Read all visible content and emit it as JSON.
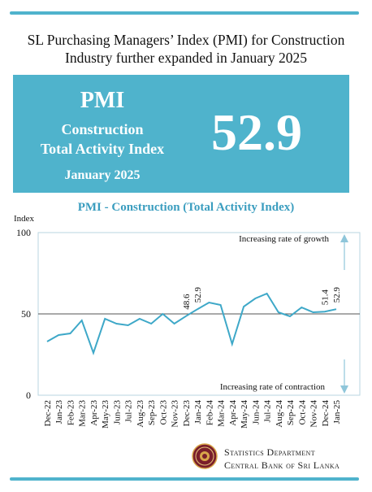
{
  "colors": {
    "accent": "#4fb3cc",
    "line": "#3ea8c8",
    "banner_bg": "#4fb3cc",
    "title_color": "#3a9dbf"
  },
  "headline": {
    "line1": "SL Purchasing Managers’ Index (PMI) for Construction",
    "line2": "Industry further expanded in January 2025"
  },
  "banner": {
    "pmi": "PMI",
    "subtitle1": "Construction",
    "subtitle2": "Total Activity Index",
    "date": "January 2025",
    "value": "52.9"
  },
  "chart_title": "PMI - Construction (Total Activity Index)",
  "chart_data": {
    "type": "line",
    "ylabel": "Index",
    "ylim": [
      0,
      100
    ],
    "yticks": [
      0,
      50,
      100
    ],
    "reference_line": 50,
    "categories": [
      "Dec-22",
      "Jan-23",
      "Feb-23",
      "Mar-23",
      "Apr-23",
      "May-23",
      "Jun-23",
      "Jul-23",
      "Aug-23",
      "Sep-23",
      "Oct-23",
      "Nov-23",
      "Dec-23",
      "Jan-24",
      "Feb-24",
      "Mar-24",
      "Apr-24",
      "May-24",
      "Jun-24",
      "Jul-24",
      "Aug-24",
      "Sep-24",
      "Oct-24",
      "Nov-24",
      "Dec-24",
      "Jan-25"
    ],
    "values": [
      33,
      37,
      38,
      46,
      26,
      47,
      44,
      43,
      47,
      44,
      50,
      44,
      48.6,
      52.9,
      57,
      55.5,
      31.5,
      54.5,
      59.5,
      62.5,
      51,
      48.5,
      54,
      51,
      51.4,
      52.9
    ],
    "data_labels": [
      {
        "category": "Dec-23",
        "text": "48.6"
      },
      {
        "category": "Jan-24",
        "text": "52.9"
      },
      {
        "category": "Dec-24",
        "text": "51.4"
      },
      {
        "category": "Jan-25",
        "text": "52.9"
      }
    ],
    "annotation_top": "Increasing rate of growth",
    "annotation_bottom": "Increasing rate of contraction"
  },
  "footer": {
    "line1": "Statistics Department",
    "line2": "Central Bank of Sri Lanka"
  },
  "icons": {
    "logo": "central-bank-emblem-icon"
  }
}
